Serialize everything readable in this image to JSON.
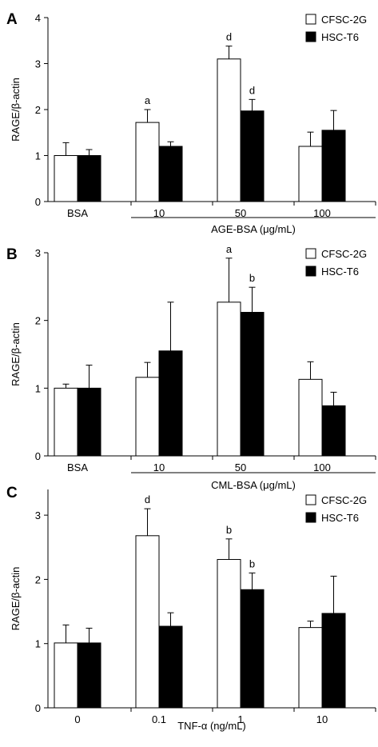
{
  "chart_data": [
    {
      "panel": "A",
      "type": "bar",
      "ylabel": "RAGE/β-actin",
      "ylim": [
        0,
        4
      ],
      "yticks": [
        0,
        1,
        2,
        3,
        4
      ],
      "categories": [
        "BSA",
        "10",
        "50",
        "100"
      ],
      "group_label": "AGE-BSA (μg/mL)",
      "bracket_start_index": 1,
      "legend_position": "top-right",
      "series": [
        {
          "name": "CFSC-2G",
          "color": "#ffffff",
          "values": [
            1.0,
            1.72,
            3.1,
            1.2
          ],
          "errors": [
            0.28,
            0.28,
            0.28,
            0.31
          ],
          "labels": [
            "",
            "a",
            "d",
            ""
          ]
        },
        {
          "name": "HSC-T6",
          "color": "#000000",
          "values": [
            1.0,
            1.2,
            1.97,
            1.55
          ],
          "errors": [
            0.13,
            0.1,
            0.25,
            0.43
          ],
          "labels": [
            "",
            "",
            "d",
            ""
          ]
        }
      ]
    },
    {
      "panel": "B",
      "type": "bar",
      "ylabel": "RAGE/β-actin",
      "ylim": [
        0,
        3
      ],
      "yticks": [
        0,
        1,
        2,
        3
      ],
      "categories": [
        "BSA",
        "10",
        "50",
        "100"
      ],
      "group_label": "CML-BSA (μg/mL)",
      "bracket_start_index": 1,
      "legend_position": "top-right",
      "series": [
        {
          "name": "CFSC-2G",
          "color": "#ffffff",
          "values": [
            1.0,
            1.16,
            2.27,
            1.13
          ],
          "errors": [
            0.06,
            0.22,
            0.65,
            0.26
          ],
          "labels": [
            "",
            "",
            "a",
            ""
          ]
        },
        {
          "name": "HSC-T6",
          "color": "#000000",
          "values": [
            1.0,
            1.55,
            2.12,
            0.74
          ],
          "errors": [
            0.34,
            0.72,
            0.37,
            0.2
          ],
          "labels": [
            "",
            "",
            "b",
            ""
          ]
        }
      ]
    },
    {
      "panel": "C",
      "type": "bar",
      "ylabel": "RAGE/β-actin",
      "ylim": [
        0,
        3.4
      ],
      "yticks": [
        0,
        1,
        2,
        3
      ],
      "categories": [
        "0",
        "0.1",
        "1",
        "10"
      ],
      "xlabel": "TNF-α (ng/mL)",
      "legend_position": "top-right",
      "series": [
        {
          "name": "CFSC-2G",
          "color": "#ffffff",
          "values": [
            1.01,
            2.68,
            2.31,
            1.25
          ],
          "errors": [
            0.28,
            0.42,
            0.32,
            0.1
          ],
          "labels": [
            "",
            "d",
            "b",
            ""
          ]
        },
        {
          "name": "HSC-T6",
          "color": "#000000",
          "values": [
            1.01,
            1.27,
            1.84,
            1.47
          ],
          "errors": [
            0.23,
            0.21,
            0.26,
            0.58
          ],
          "labels": [
            "",
            "",
            "b",
            ""
          ]
        }
      ]
    }
  ]
}
